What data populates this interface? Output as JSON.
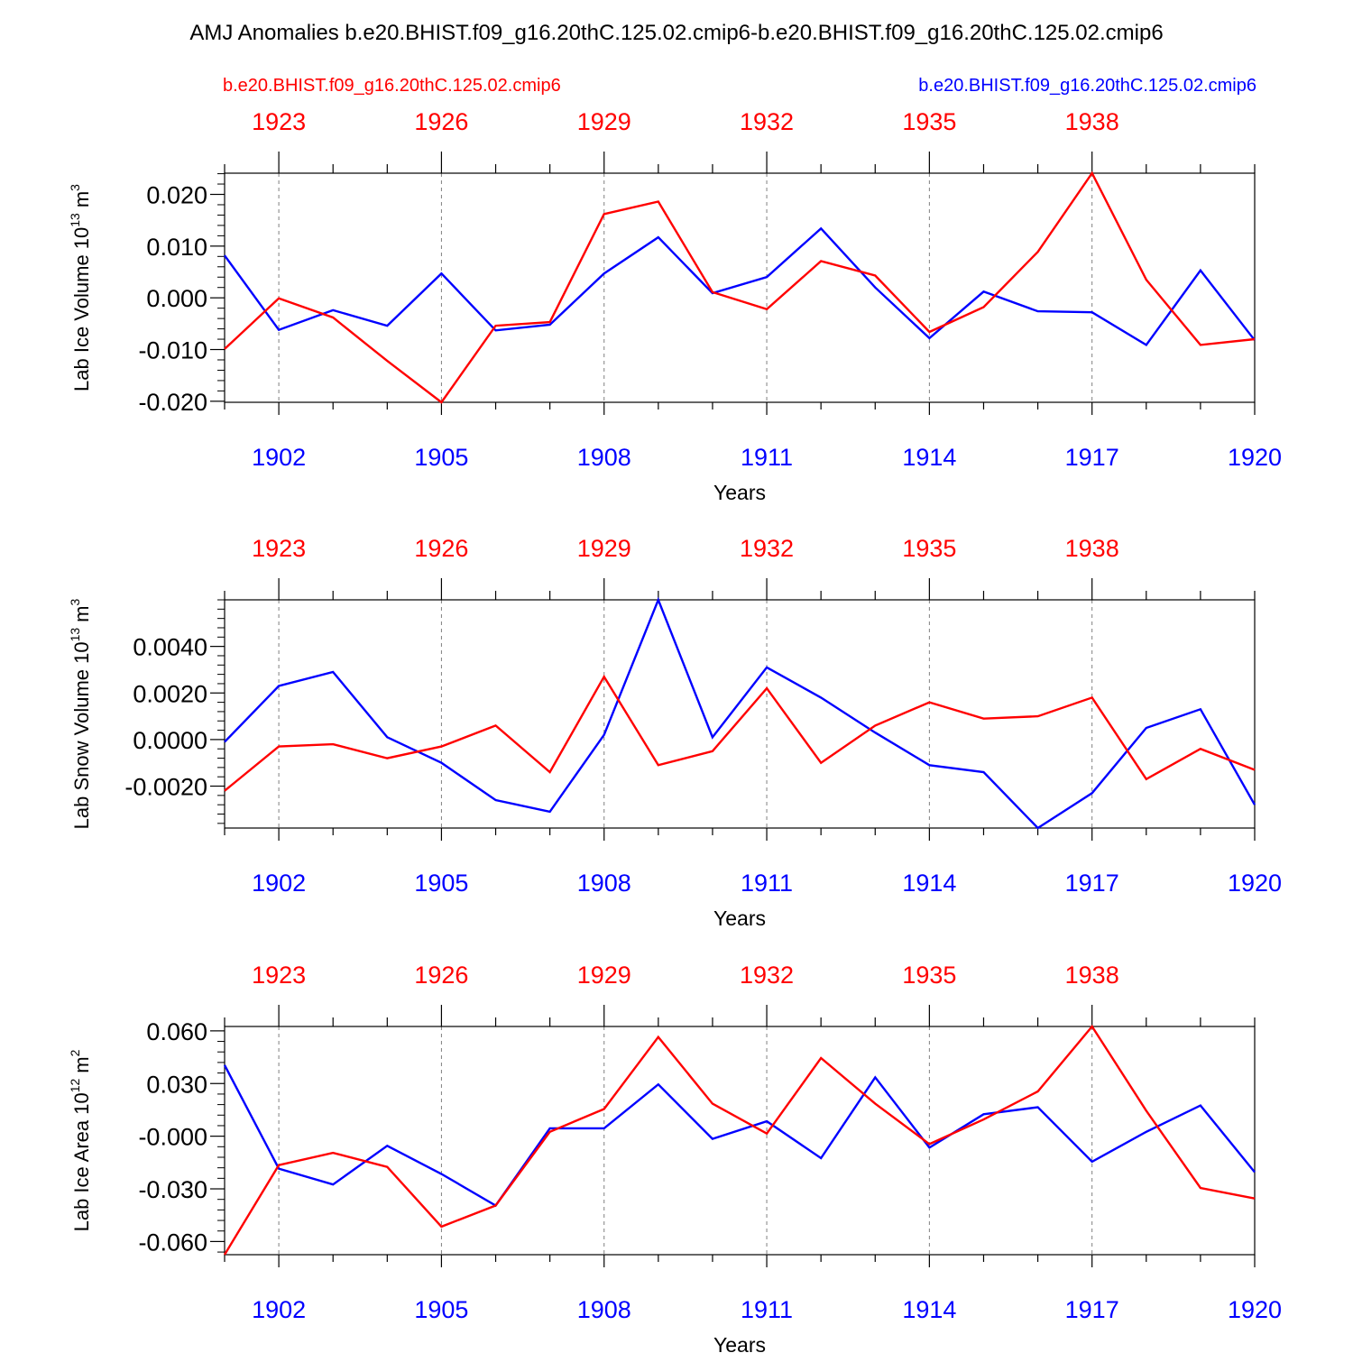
{
  "title": "AMJ Anomalies b.e20.BHIST.f09_g16.20thC.125.02.cmip6-b.e20.BHIST.f09_g16.20thC.125.02.cmip6",
  "legend": {
    "red": "b.e20.BHIST.f09_g16.20thC.125.02.cmip6",
    "blue": "b.e20.BHIST.f09_g16.20thC.125.02.cmip6"
  },
  "colors": {
    "red": "#ff0000",
    "blue": "#0000ff",
    "axis": "#000000",
    "grid": "#808080"
  },
  "chart_data": [
    {
      "type": "line",
      "ylabel": "Lab Ice Volume 10",
      "ylabel_exp": "13",
      "ylabel_unit": "m",
      "ylabel_unit_exp": "3",
      "xlabel": "Years",
      "bottom_axis": {
        "range": [
          1901,
          1920
        ],
        "ticks": [
          1902,
          1905,
          1908,
          1911,
          1914,
          1917,
          1920
        ],
        "tick_labels": [
          "1902",
          "1905",
          "1908",
          "1911",
          "1914",
          "1917",
          "1920"
        ]
      },
      "top_axis": {
        "range": [
          1922,
          1941
        ],
        "ticks": [
          1923,
          1926,
          1929,
          1932,
          1935,
          1938
        ],
        "tick_labels": [
          "1923",
          "1926",
          "1929",
          "1932",
          "1935",
          "1938"
        ]
      },
      "ylim": [
        -0.0202,
        0.0241
      ],
      "yticks": [
        -0.02,
        -0.01,
        0.0,
        0.01,
        0.02
      ],
      "ytick_labels": [
        "-0.020",
        "-0.010",
        "0.000",
        "0.010",
        "0.020"
      ],
      "y_minor_step": 0.002,
      "series": [
        {
          "name": "red",
          "values": [
            -0.0099,
            -0.0001,
            -0.0038,
            -0.0122,
            -0.0202,
            -0.0054,
            -0.0047,
            0.0162,
            0.0186,
            0.0011,
            -0.0022,
            0.0071,
            0.0043,
            -0.0066,
            -0.0018,
            0.0089,
            0.0241,
            0.0035,
            -0.0091,
            -0.008
          ]
        },
        {
          "name": "blue",
          "values": [
            0.0082,
            -0.0062,
            -0.0024,
            -0.0054,
            0.0047,
            -0.0063,
            -0.0052,
            0.0047,
            0.0117,
            0.0009,
            0.004,
            0.0134,
            0.002,
            -0.0078,
            0.0012,
            -0.0026,
            -0.0028,
            -0.0091,
            0.0053,
            -0.0082
          ]
        }
      ]
    },
    {
      "type": "line",
      "ylabel": "Lab Snow Volume 10",
      "ylabel_exp": "13",
      "ylabel_unit": "m",
      "ylabel_unit_exp": "3",
      "xlabel": "Years",
      "bottom_axis": {
        "range": [
          1901,
          1920
        ],
        "ticks": [
          1902,
          1905,
          1908,
          1911,
          1914,
          1917,
          1920
        ],
        "tick_labels": [
          "1902",
          "1905",
          "1908",
          "1911",
          "1914",
          "1917",
          "1920"
        ]
      },
      "top_axis": {
        "range": [
          1922,
          1941
        ],
        "ticks": [
          1923,
          1926,
          1929,
          1932,
          1935,
          1938
        ],
        "tick_labels": [
          "1923",
          "1926",
          "1929",
          "1932",
          "1935",
          "1938"
        ]
      },
      "ylim": [
        -0.0038,
        0.006
      ],
      "yticks": [
        -0.002,
        0.0,
        0.002,
        0.004
      ],
      "ytick_labels": [
        "-0.0020",
        "0.0000",
        "0.0020",
        "0.0040"
      ],
      "y_minor_step": 0.0004,
      "series": [
        {
          "name": "red",
          "values": [
            -0.0022,
            -0.0003,
            -0.0002,
            -0.0008,
            -0.0003,
            0.0006,
            -0.0014,
            0.0027,
            -0.0011,
            -0.0005,
            0.0022,
            -0.001,
            0.0006,
            0.0016,
            0.0009,
            0.001,
            0.0018,
            -0.0017,
            -0.0004,
            -0.0013
          ]
        },
        {
          "name": "blue",
          "values": [
            -0.0001,
            0.0023,
            0.0029,
            0.0001,
            -0.001,
            -0.0026,
            -0.0031,
            0.0002,
            0.006,
            0.0001,
            0.0031,
            0.0018,
            0.0003,
            -0.0011,
            -0.0014,
            -0.0038,
            -0.0023,
            0.0005,
            0.0013,
            -0.0028
          ]
        }
      ]
    },
    {
      "type": "line",
      "ylabel": "Lab Ice Area 10",
      "ylabel_exp": "12",
      "ylabel_unit": "m",
      "ylabel_unit_exp": "2",
      "xlabel": "Years",
      "bottom_axis": {
        "range": [
          1901,
          1920
        ],
        "ticks": [
          1902,
          1905,
          1908,
          1911,
          1914,
          1917,
          1920
        ],
        "tick_labels": [
          "1902",
          "1905",
          "1908",
          "1911",
          "1914",
          "1917",
          "1920"
        ]
      },
      "top_axis": {
        "range": [
          1922,
          1941
        ],
        "ticks": [
          1923,
          1926,
          1929,
          1932,
          1935,
          1938
        ],
        "tick_labels": [
          "1923",
          "1926",
          "1929",
          "1932",
          "1935",
          "1938"
        ]
      },
      "ylim": [
        -0.0675,
        0.0625
      ],
      "yticks": [
        -0.06,
        -0.03,
        0.0,
        0.03,
        0.06
      ],
      "ytick_labels": [
        "-0.060",
        "-0.030",
        "-0.000",
        "0.030",
        "0.060"
      ],
      "y_minor_step": 0.006,
      "series": [
        {
          "name": "red",
          "values": [
            -0.0675,
            -0.0165,
            -0.0095,
            -0.0175,
            -0.0515,
            -0.0395,
            0.0025,
            0.0155,
            0.0565,
            0.0185,
            0.0015,
            0.0445,
            0.0185,
            -0.0045,
            0.0095,
            0.0255,
            0.0625,
            0.0145,
            -0.0295,
            -0.0355
          ]
        },
        {
          "name": "blue",
          "values": [
            0.0405,
            -0.0185,
            -0.0275,
            -0.0055,
            -0.0215,
            -0.0395,
            0.0045,
            0.0045,
            0.0295,
            -0.0015,
            0.0085,
            -0.0125,
            0.0335,
            -0.0065,
            0.0125,
            0.0165,
            -0.0145,
            0.0025,
            0.0175,
            -0.0205
          ]
        }
      ]
    }
  ]
}
